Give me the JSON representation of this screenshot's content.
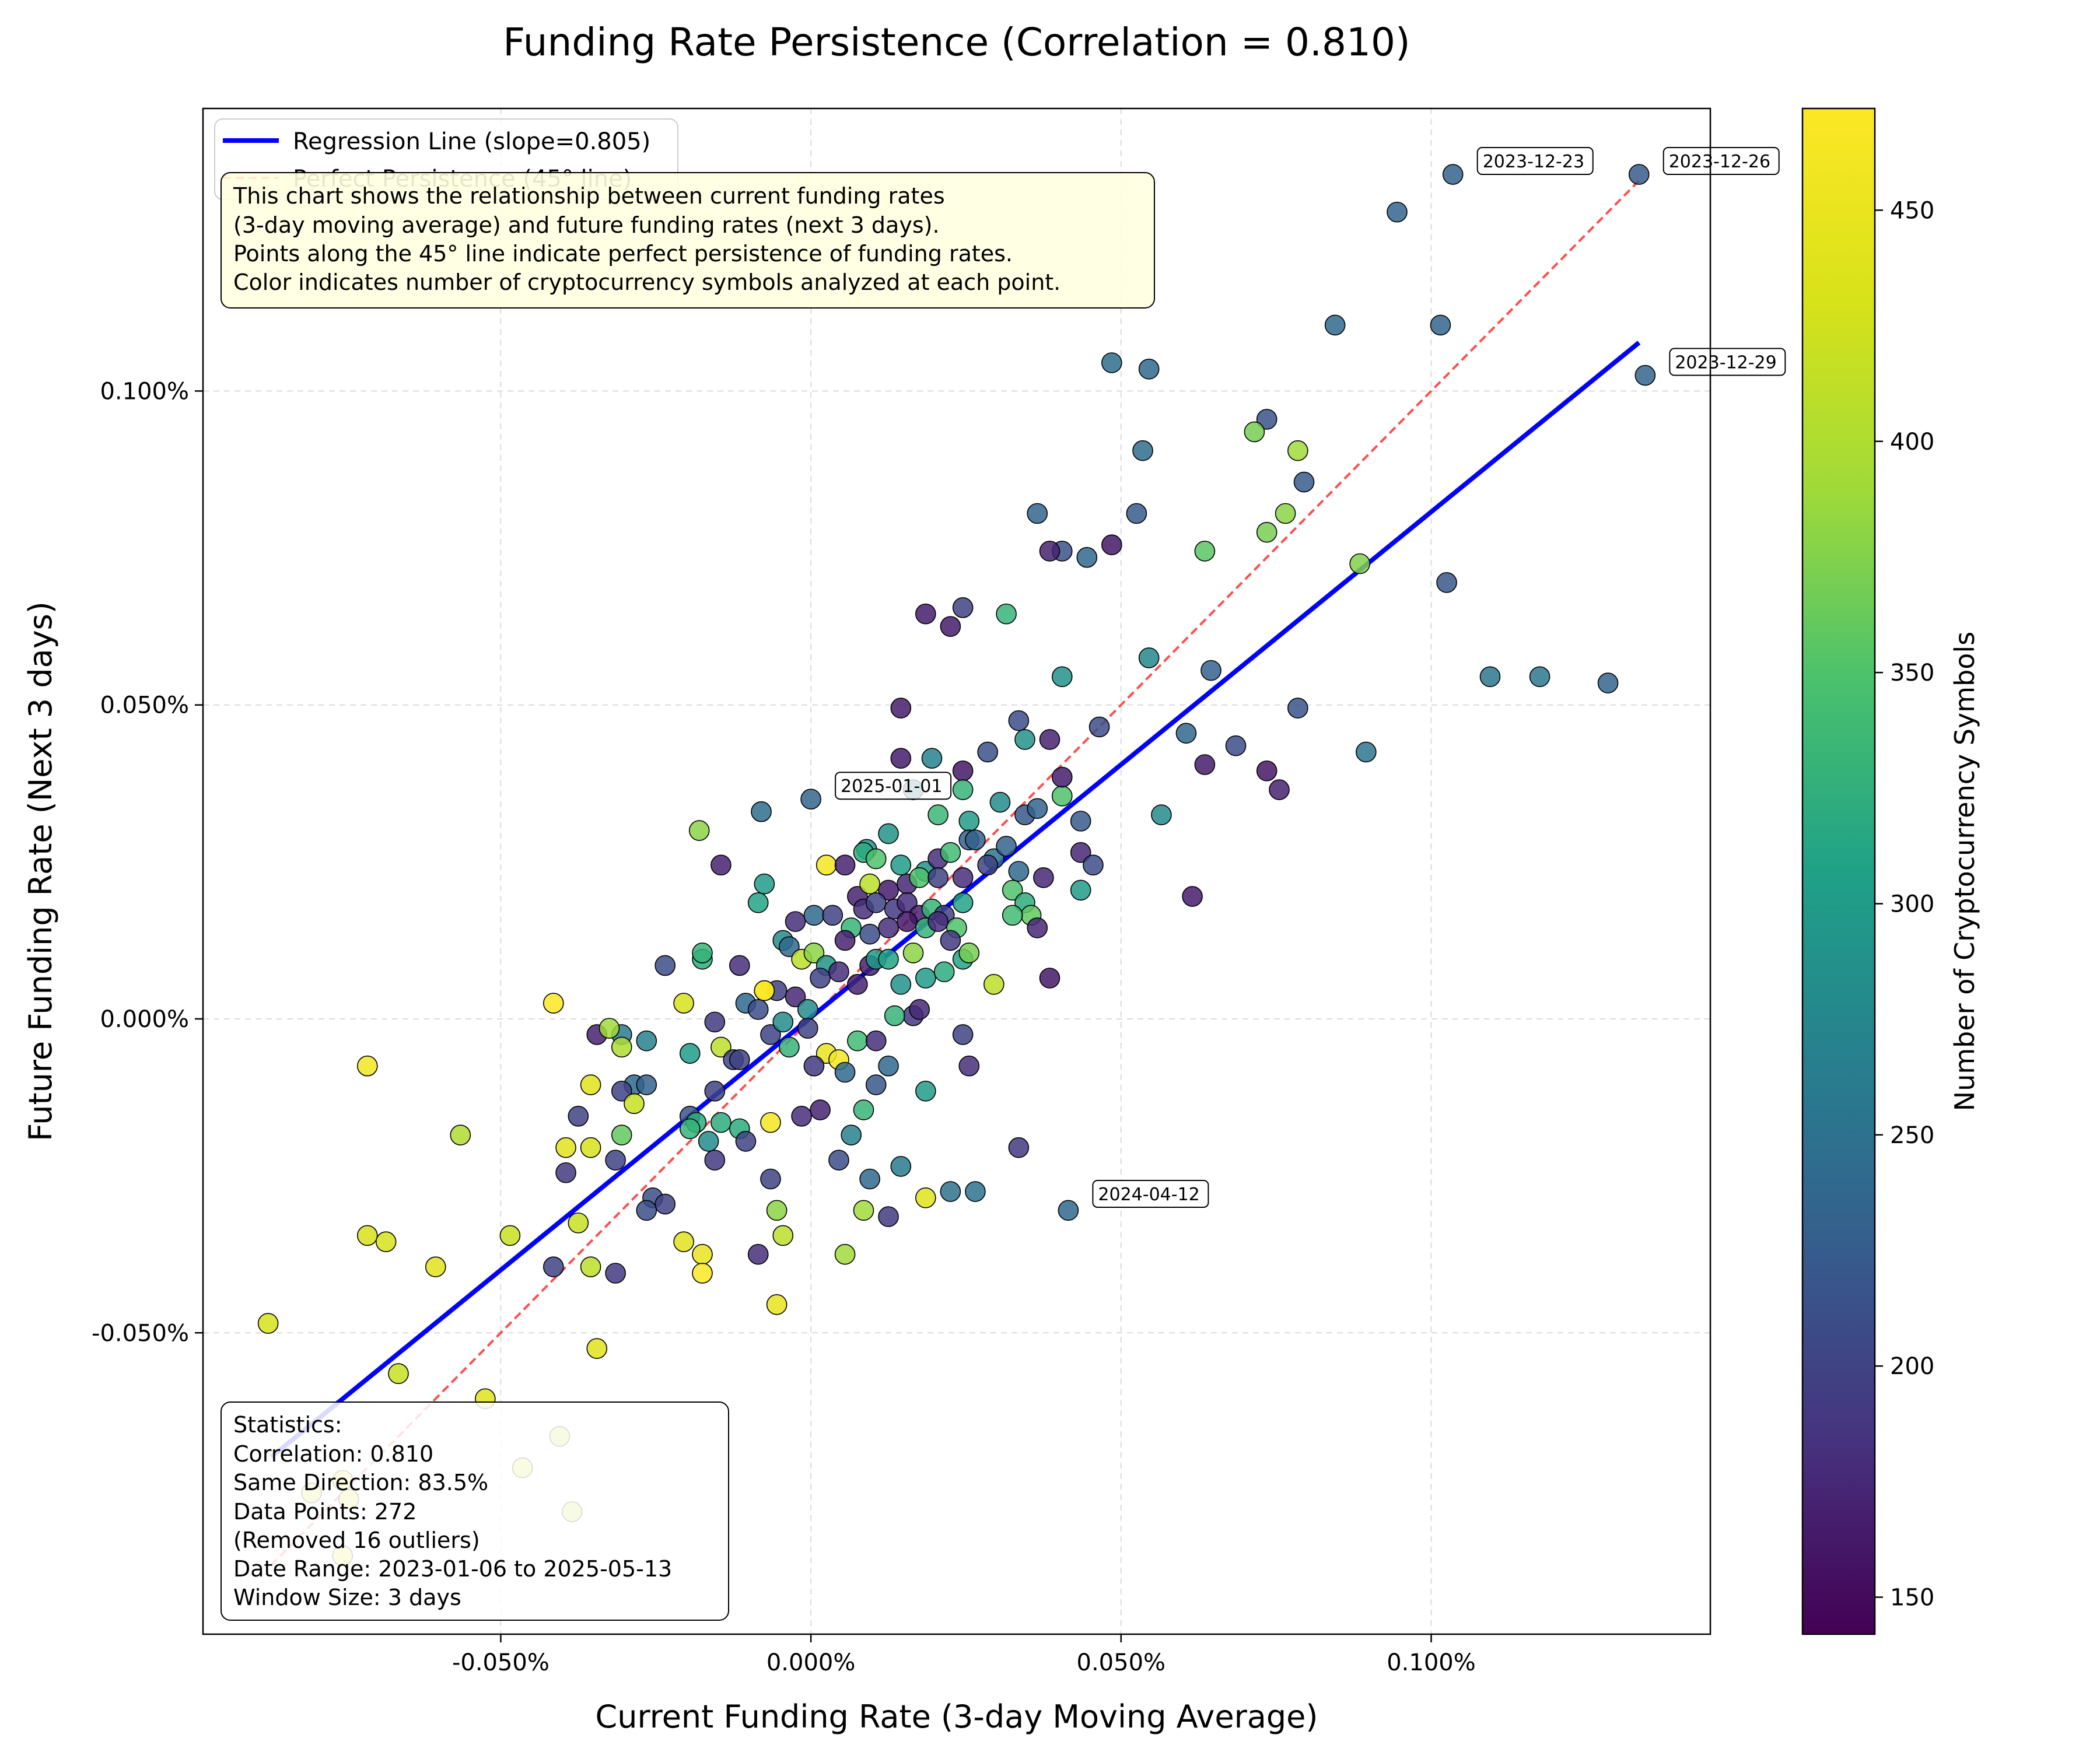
{
  "chart_data": {
    "type": "scatter",
    "title": "Funding Rate Persistence (Correlation = 0.810)",
    "xlabel": "Current Funding Rate (3-day Moving Average)",
    "ylabel": "Future Funding Rate (Next 3 days)",
    "xlim": [
      -0.00098,
      0.00145
    ],
    "ylim": [
      -0.00098,
      0.00145
    ],
    "x_ticks": [
      {
        "value": -0.0005,
        "label": "-0.050%"
      },
      {
        "value": 0,
        "label": "0.000%"
      },
      {
        "value": 0.0005,
        "label": "0.050%"
      },
      {
        "value": 0.001,
        "label": "0.100%"
      }
    ],
    "y_ticks": [
      {
        "value": -0.0005,
        "label": "-0.050%"
      },
      {
        "value": 0,
        "label": "0.000%"
      },
      {
        "value": 0.0005,
        "label": "0.050%"
      },
      {
        "value": 0.001,
        "label": "0.100%"
      }
    ],
    "grid": true,
    "legend_position": "top-left",
    "legend": [
      {
        "label": "Regression Line (slope=0.805)",
        "color": "#0000ff",
        "style": "solid"
      },
      {
        "label": "Perfect Persistence (45° line)",
        "color": "#ff3030",
        "style": "dashed"
      }
    ],
    "regression_line": {
      "slope": 0.805,
      "intercept": 2.5e-06,
      "x_range": [
        -0.00087,
        0.001335
      ],
      "color": "#0000ff"
    },
    "identity_line": {
      "x_range": [
        -0.00087,
        0.001335
      ],
      "color": "#ff3030"
    },
    "colorbar": {
      "label": "Number of Cryptocurrency Symbols",
      "range": [
        142,
        472
      ],
      "ticks": [
        150,
        200,
        250,
        300,
        350,
        400,
        450
      ],
      "colormap": "viridis"
    },
    "info_box": [
      "This chart shows the relationship between current funding rates",
      "(3-day moving average) and future funding rates (next 3 days).",
      "Points along the 45° line indicate perfect persistence of funding rates.",
      "Color indicates number of cryptocurrency symbols analyzed at each point."
    ],
    "stats_box": [
      "Statistics:",
      "Correlation: 0.810",
      "Same Direction: 83.5%",
      "Data Points: 272",
      "(Removed 16 outliers)",
      "Date Range: 2023-01-06 to 2025-05-13",
      "Window Size: 3 days"
    ],
    "annotations": [
      {
        "text": "2023-12-23",
        "x": 0.001035,
        "y": 0.001345
      },
      {
        "text": "2023-12-26",
        "x": 0.001335,
        "y": 0.001345
      },
      {
        "text": "2023-12-29",
        "x": 0.001345,
        "y": 0.001025
      },
      {
        "text": "2025-01-01",
        "x": 0.0,
        "y": 0.00035
      },
      {
        "text": "2024-04-12",
        "x": 0.000415,
        "y": -0.0003
      }
    ],
    "points": [
      [
        0.001035,
        0.001345,
        230
      ],
      [
        0.001335,
        0.001345,
        225
      ],
      [
        0.001345,
        0.001025,
        235
      ],
      [
        0.000945,
        0.001285,
        235
      ],
      [
        0.000845,
        0.001105,
        240
      ],
      [
        0.001015,
        0.001105,
        235
      ],
      [
        0.000485,
        0.001045,
        245
      ],
      [
        0.000545,
        0.001035,
        240
      ],
      [
        0.000535,
        0.000905,
        245
      ],
      [
        0.000735,
        0.000955,
        215
      ],
      [
        0.000795,
        0.000855,
        225
      ],
      [
        0.000715,
        0.000935,
        370
      ],
      [
        0.000785,
        0.000905,
        390
      ],
      [
        0.000765,
        0.000805,
        380
      ],
      [
        0.000735,
        0.000775,
        370
      ],
      [
        0.000885,
        0.000725,
        375
      ],
      [
        0.000635,
        0.000745,
        355
      ],
      [
        0.000365,
        0.000805,
        235
      ],
      [
        0.000525,
        0.000805,
        225
      ],
      [
        0.000405,
        0.000745,
        215
      ],
      [
        0.000385,
        0.000745,
        170
      ],
      [
        0.000445,
        0.000735,
        240
      ],
      [
        0.000485,
        0.000755,
        160
      ],
      [
        0.001025,
        0.000695,
        220
      ],
      [
        0.000185,
        0.000645,
        165
      ],
      [
        0.000225,
        0.000625,
        165
      ],
      [
        0.000245,
        0.000655,
        200
      ],
      [
        0.000315,
        0.000645,
        330
      ],
      [
        0.000545,
        0.000575,
        275
      ],
      [
        0.000405,
        0.000545,
        290
      ],
      [
        0.000645,
        0.000555,
        230
      ],
      [
        0.000785,
        0.000495,
        215
      ],
      [
        0.001095,
        0.000545,
        255
      ],
      [
        0.001175,
        0.000545,
        255
      ],
      [
        0.001285,
        0.000535,
        235
      ],
      [
        0.000145,
        0.000495,
        165
      ],
      [
        0.000335,
        0.000475,
        210
      ],
      [
        0.000465,
        0.000465,
        210
      ],
      [
        0.000605,
        0.000455,
        240
      ],
      [
        0.000685,
        0.000435,
        210
      ],
      [
        0.000895,
        0.000425,
        255
      ],
      [
        0.000145,
        0.000415,
        165
      ],
      [
        0.000195,
        0.000415,
        270
      ],
      [
        0.000285,
        0.000425,
        215
      ],
      [
        0.000345,
        0.000445,
        290
      ],
      [
        0.000385,
        0.000445,
        170
      ],
      [
        0.000405,
        0.000355,
        350
      ],
      [
        0.000635,
        0.000405,
        165
      ],
      [
        0.000735,
        0.000395,
        160
      ],
      [
        0.000755,
        0.000365,
        170
      ],
      [
        0.000245,
        0.000395,
        160
      ],
      [
        0.000165,
        0.000365,
        255
      ],
      [
        0.000405,
        0.000385,
        165
      ],
      [
        0.000565,
        0.000325,
        280
      ],
      [
        0.000435,
        0.000315,
        225
      ],
      [
        0.0,
        0.00035,
        235
      ],
      [
        -8e-05,
        0.00033,
        245
      ],
      [
        0.000205,
        0.000325,
        335
      ],
      [
        0.000255,
        0.000315,
        300
      ],
      [
        0.000305,
        0.000345,
        280
      ],
      [
        0.000345,
        0.000325,
        220
      ],
      [
        0.000365,
        0.000335,
        230
      ],
      [
        -0.00018,
        0.0003,
        380
      ],
      [
        9e-05,
        0.00027,
        290
      ],
      [
        0.000125,
        0.000295,
        290
      ],
      [
        0.000245,
        0.000365,
        330
      ],
      [
        0.000435,
        0.000265,
        175
      ],
      [
        0.000455,
        0.000245,
        210
      ],
      [
        0.000615,
        0.000195,
        165
      ],
      [
        0.000435,
        0.000205,
        300
      ],
      [
        0.000375,
        0.000225,
        175
      ],
      [
        0.000335,
        0.000235,
        240
      ],
      [
        0.000255,
        0.000285,
        230
      ],
      [
        0.000295,
        0.000255,
        250
      ],
      [
        0.000315,
        0.000275,
        230
      ],
      [
        -0.000145,
        0.000245,
        170
      ],
      [
        2.5e-05,
        0.000245,
        460
      ],
      [
        5.5e-05,
        0.000245,
        170
      ],
      [
        8.5e-05,
        0.000265,
        320
      ],
      [
        0.000105,
        0.000255,
        350
      ],
      [
        0.000145,
        0.000245,
        300
      ],
      [
        0.000185,
        0.000235,
        290
      ],
      [
        0.000205,
        0.000255,
        180
      ],
      [
        0.000225,
        0.000265,
        340
      ],
      [
        0.000265,
        0.000285,
        230
      ],
      [
        0.000285,
        0.000245,
        200
      ],
      [
        -7.5e-05,
        0.000215,
        300
      ],
      [
        -8.5e-05,
        0.000185,
        310
      ],
      [
        7.5e-05,
        0.000195,
        170
      ],
      [
        9.5e-05,
        0.000215,
        410
      ],
      [
        0.000125,
        0.000205,
        165
      ],
      [
        0.000155,
        0.000215,
        175
      ],
      [
        0.000175,
        0.000225,
        350
      ],
      [
        0.000205,
        0.000225,
        200
      ],
      [
        0.000245,
        0.000185,
        310
      ],
      [
        0.000245,
        0.000225,
        180
      ],
      [
        0.000325,
        0.000205,
        350
      ],
      [
        0.000345,
        0.000185,
        320
      ],
      [
        0.000355,
        0.000165,
        360
      ],
      [
        0.000365,
        0.000145,
        175
      ],
      [
        -2.5e-05,
        0.000155,
        180
      ],
      [
        5e-06,
        0.000165,
        240
      ],
      [
        3.5e-05,
        0.000165,
        200
      ],
      [
        6.5e-05,
        0.000145,
        330
      ],
      [
        8.5e-05,
        0.000175,
        180
      ],
      [
        0.000105,
        0.000185,
        200
      ],
      [
        0.000135,
        0.000175,
        190
      ],
      [
        0.000155,
        0.000185,
        180
      ],
      [
        0.000175,
        0.000165,
        170
      ],
      [
        0.000195,
        0.000175,
        330
      ],
      [
        0.000215,
        0.000165,
        200
      ],
      [
        0.000235,
        0.000145,
        350
      ],
      [
        0.000325,
        0.000165,
        340
      ],
      [
        -4.5e-05,
        0.000125,
        280
      ],
      [
        -3.5e-05,
        0.000115,
        240
      ],
      [
        -1.5e-05,
        9.5e-05,
        410
      ],
      [
        5e-06,
        0.000105,
        380
      ],
      [
        2.5e-05,
        8.5e-05,
        290
      ],
      [
        5.5e-05,
        0.000125,
        170
      ],
      [
        9.5e-05,
        0.000135,
        210
      ],
      [
        0.000125,
        0.000145,
        180
      ],
      [
        0.000155,
        0.000155,
        160
      ],
      [
        0.000185,
        0.000145,
        330
      ],
      [
        0.000205,
        0.000155,
        180
      ],
      [
        0.000225,
        0.000125,
        190
      ],
      [
        0.000245,
        9.5e-05,
        310
      ],
      [
        0.000255,
        0.000105,
        370
      ],
      [
        -0.000175,
        9.5e-05,
        320
      ],
      [
        -0.000175,
        0.000105,
        330
      ],
      [
        -0.000115,
        8.5e-05,
        180
      ],
      [
        -0.000235,
        8.5e-05,
        210
      ],
      [
        -5.5e-05,
        4.5e-05,
        200
      ],
      [
        -7.5e-05,
        4.5e-05,
        430
      ],
      [
        -0.000105,
        2.5e-05,
        240
      ],
      [
        -8.5e-05,
        1.5e-05,
        210
      ],
      [
        -2.5e-05,
        3.5e-05,
        175
      ],
      [
        -5e-06,
        1.5e-05,
        280
      ],
      [
        1.5e-05,
        6.5e-05,
        200
      ],
      [
        4.5e-05,
        7.5e-05,
        180
      ],
      [
        7.5e-05,
        5.5e-05,
        170
      ],
      [
        9.5e-05,
        8.5e-05,
        170
      ],
      [
        0.000105,
        9.5e-05,
        300
      ],
      [
        0.000125,
        9.5e-05,
        310
      ],
      [
        0.000145,
        5.5e-05,
        290
      ],
      [
        0.000165,
        0.000105,
        380
      ],
      [
        0.000185,
        6.5e-05,
        300
      ],
      [
        0.000215,
        7.5e-05,
        320
      ],
      [
        0.000295,
        5.5e-05,
        410
      ],
      [
        0.000385,
        6.5e-05,
        160
      ],
      [
        0.000165,
        5e-06,
        190
      ],
      [
        0.000175,
        1.5e-05,
        175
      ],
      [
        0.000135,
        5e-06,
        330
      ],
      [
        -0.000415,
        2.5e-05,
        470
      ],
      [
        -0.000205,
        2.5e-05,
        430
      ],
      [
        -0.000265,
        -3.5e-05,
        270
      ],
      [
        -0.000195,
        -5.5e-05,
        300
      ],
      [
        -0.000155,
        -5e-06,
        190
      ],
      [
        -7.5e-05,
        4.5e-05,
        470
      ],
      [
        -6.5e-05,
        -2.5e-05,
        200
      ],
      [
        -4.5e-05,
        -5e-06,
        280
      ],
      [
        -3.5e-05,
        -4.5e-05,
        330
      ],
      [
        -5e-06,
        -1.5e-05,
        200
      ],
      [
        2.5e-05,
        -5.5e-05,
        450
      ],
      [
        4.5e-05,
        -6.5e-05,
        460
      ],
      [
        5.5e-05,
        -8.5e-05,
        240
      ],
      [
        7.5e-05,
        -3.5e-05,
        340
      ],
      [
        0.000105,
        -3.5e-05,
        180
      ],
      [
        0.000125,
        -7.5e-05,
        240
      ],
      [
        0.000255,
        -7.5e-05,
        180
      ],
      [
        -0.000345,
        -2.5e-05,
        170
      ],
      [
        -0.000305,
        -2.5e-05,
        260
      ],
      [
        -0.000325,
        -1.5e-05,
        390
      ],
      [
        -0.000305,
        -4.5e-05,
        400
      ],
      [
        -0.000285,
        -0.000105,
        240
      ],
      [
        -0.000305,
        -0.000115,
        200
      ],
      [
        -0.000265,
        -0.000105,
        230
      ],
      [
        -0.000355,
        -0.000105,
        440
      ],
      [
        -0.000285,
        -0.000135,
        420
      ],
      [
        -0.000145,
        -4.5e-05,
        410
      ],
      [
        -0.000125,
        -6.5e-05,
        200
      ],
      [
        -0.000115,
        -6.5e-05,
        200
      ],
      [
        -0.000155,
        -0.000115,
        200
      ],
      [
        8.5e-05,
        -0.000145,
        330
      ],
      [
        0.000185,
        -0.000115,
        300
      ],
      [
        6.5e-05,
        -0.000185,
        270
      ],
      [
        1.5e-05,
        -0.000145,
        170
      ],
      [
        -1.5e-05,
        -0.000155,
        180
      ],
      [
        -6.5e-05,
        -0.000165,
        460
      ],
      [
        -0.000145,
        -0.000165,
        320
      ],
      [
        -0.000115,
        -0.000175,
        320
      ],
      [
        -0.000105,
        -0.000195,
        200
      ],
      [
        -0.000165,
        -0.000195,
        280
      ],
      [
        -0.000195,
        -0.000155,
        215
      ],
      [
        -0.000185,
        -0.000165,
        320
      ],
      [
        -0.000155,
        -0.000225,
        190
      ],
      [
        -0.000305,
        -0.000185,
        360
      ],
      [
        -0.000375,
        -0.000155,
        200
      ],
      [
        -0.000395,
        -0.000205,
        440
      ],
      [
        -0.000355,
        -0.000205,
        430
      ],
      [
        -0.000395,
        -0.000245,
        190
      ],
      [
        -0.000565,
        -0.000185,
        400
      ],
      [
        4.5e-05,
        -0.000225,
        210
      ],
      [
        0.000145,
        -0.000235,
        260
      ],
      [
        0.000225,
        -0.000275,
        250
      ],
      [
        0.000415,
        -0.000305,
        240
      ],
      [
        0.000185,
        -0.000285,
        440
      ],
      [
        8.5e-05,
        -0.000305,
        390
      ],
      [
        0.000125,
        -0.000315,
        190
      ],
      [
        -6.5e-05,
        -0.000255,
        200
      ],
      [
        -5.5e-05,
        -0.000305,
        380
      ],
      [
        -4.5e-05,
        -0.000345,
        410
      ],
      [
        -8.5e-05,
        -0.000375,
        180
      ],
      [
        -0.000175,
        -0.000375,
        450
      ],
      [
        -0.000175,
        -0.000405,
        470
      ],
      [
        -0.000205,
        -0.000355,
        440
      ],
      [
        -0.000255,
        -0.000285,
        210
      ],
      [
        -0.000265,
        -0.000305,
        210
      ],
      [
        -0.000235,
        -0.000295,
        200
      ],
      [
        -0.000375,
        -0.000325,
        420
      ],
      [
        -0.000315,
        -0.000405,
        190
      ],
      [
        -0.000355,
        -0.000395,
        410
      ],
      [
        -0.000415,
        -0.000395,
        200
      ],
      [
        -0.000485,
        -0.000345,
        420
      ],
      [
        -0.000715,
        -0.000345,
        430
      ],
      [
        -0.000605,
        -0.000395,
        440
      ],
      [
        5.5e-05,
        -0.000375,
        390
      ],
      [
        -5.5e-05,
        -0.000455,
        450
      ],
      [
        -0.000345,
        -0.000525,
        440
      ],
      [
        -0.000875,
        -0.000485,
        430
      ],
      [
        -0.000665,
        -0.000565,
        420
      ],
      [
        -0.000525,
        -0.000605,
        440
      ],
      [
        -0.000405,
        -0.000665,
        410
      ],
      [
        -0.000465,
        -0.000715,
        430
      ],
      [
        -0.000385,
        -0.000785,
        420
      ],
      [
        -0.000755,
        -0.000735,
        450
      ],
      [
        -0.000745,
        -0.000765,
        450
      ],
      [
        -0.000805,
        -0.000755,
        430
      ],
      [
        -0.000755,
        -0.000855,
        450
      ],
      [
        -0.000685,
        -0.000355,
        430
      ],
      [
        -0.000715,
        -7.5e-05,
        460
      ],
      [
        -0.000195,
        -0.000175,
        330
      ],
      [
        9.5e-05,
        -0.000255,
        240
      ],
      [
        0.000265,
        -0.000275,
        250
      ],
      [
        0.000335,
        -0.000205,
        190
      ],
      [
        -0.000315,
        -0.000225,
        200
      ],
      [
        5e-06,
        -7.5e-05,
        190
      ],
      [
        0.000245,
        -2.5e-05,
        200
      ],
      [
        0.000105,
        -0.000105,
        220
      ]
    ]
  }
}
